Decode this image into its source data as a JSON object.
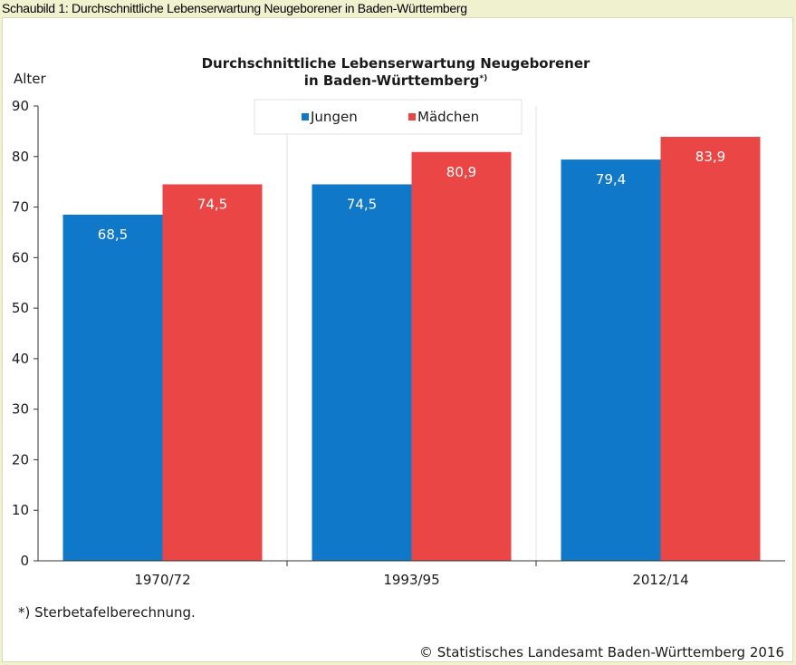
{
  "caption": "Schaubild 1: Durchschnittliche Lebenserwartung Neugeborener in Baden-Württemberg",
  "chart_data": {
    "type": "bar",
    "title_line1": "Durchschnittliche Lebenserwartung Neugeborener",
    "title_line2": "in Baden-Württemberg",
    "title_note": "*)",
    "ylabel": "Alter",
    "xlabel": "",
    "ylim": [
      0,
      90
    ],
    "yticks": [
      0,
      10,
      20,
      30,
      40,
      50,
      60,
      70,
      80,
      90
    ],
    "categories": [
      "1970/72",
      "1993/95",
      "2012/14"
    ],
    "series": [
      {
        "name": "Jungen",
        "color": "#0f78c8",
        "values": [
          68.5,
          74.5,
          79.4
        ],
        "labels": [
          "68,5",
          "74,5",
          "79,4"
        ]
      },
      {
        "name": "Mädchen",
        "color": "#eb4646",
        "values": [
          74.5,
          80.9,
          83.9
        ],
        "labels": [
          "74,5",
          "80,9",
          "83,9"
        ]
      }
    ],
    "legend_position": "top-center",
    "grid": "vertical-separators",
    "footnote": "*) Sterbetafelberechnung.",
    "source": "© Statistisches Landesamt Baden-Württemberg 2016"
  }
}
